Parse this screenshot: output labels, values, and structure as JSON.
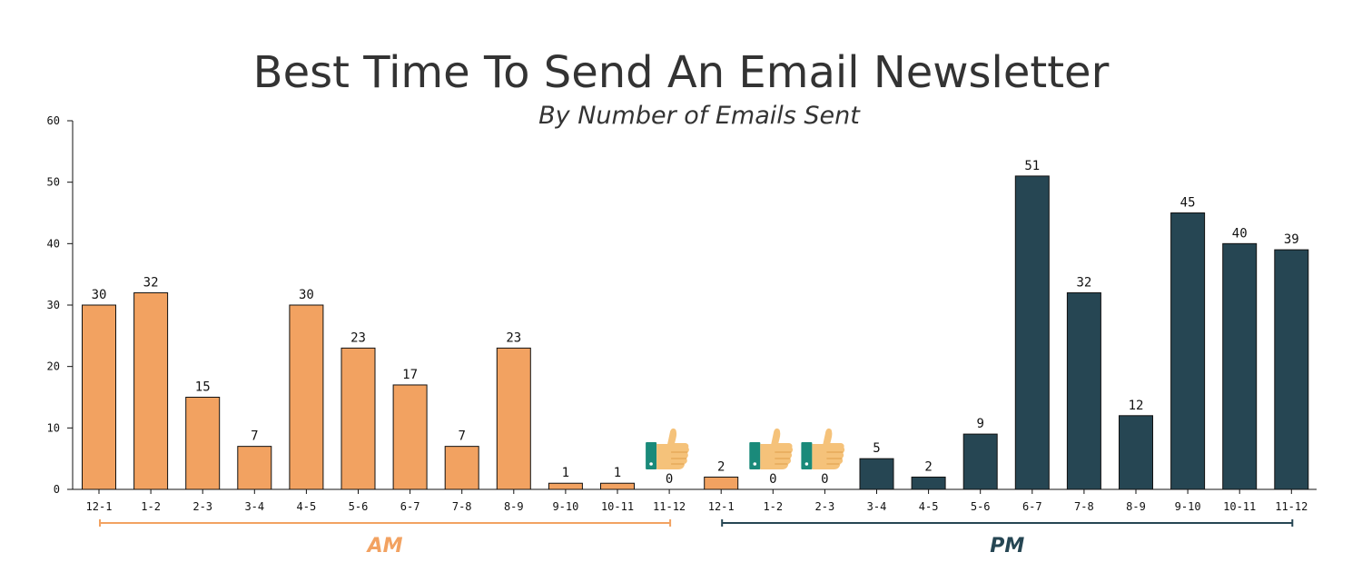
{
  "chart_data": {
    "type": "bar",
    "title": "Best Time To Send An Email Newsletter",
    "subtitle": "By Number of Emails Sent",
    "xlabel": "",
    "ylabel": "",
    "ylim": [
      0,
      60
    ],
    "yticks": [
      "0",
      "10",
      "20",
      "30",
      "40",
      "50",
      "60"
    ],
    "grid": false,
    "categories": [
      "12-1",
      "1-2",
      "2-3",
      "3-4",
      "4-5",
      "5-6",
      "6-7",
      "7-8",
      "8-9",
      "9-10",
      "10-11",
      "11-12",
      "12-1",
      "1-2",
      "2-3",
      "3-4",
      "4-5",
      "5-6",
      "6-7",
      "7-8",
      "8-9",
      "9-10",
      "10-11",
      "11-12"
    ],
    "values": [
      30,
      32,
      15,
      7,
      30,
      23,
      17,
      7,
      23,
      1,
      1,
      0,
      2,
      0,
      0,
      5,
      2,
      9,
      51,
      32,
      12,
      45,
      40,
      39
    ],
    "bar_colors": [
      "#f2a261",
      "#f2a261",
      "#f2a261",
      "#f2a261",
      "#f2a261",
      "#f2a261",
      "#f2a261",
      "#f2a261",
      "#f2a261",
      "#f2a261",
      "#f2a261",
      "#f2a261",
      "#f2a261",
      "#f2a261",
      "#f2a261",
      "#264653",
      "#264653",
      "#264653",
      "#264653",
      "#264653",
      "#264653",
      "#264653",
      "#264653",
      "#264653"
    ],
    "thumbs_up_on": [
      11,
      13,
      14
    ],
    "periods": [
      {
        "label": "AM",
        "from": 0,
        "to": 11,
        "color": "#f2a261"
      },
      {
        "label": "PM",
        "from": 12,
        "to": 23,
        "color": "#264653"
      }
    ],
    "annotation_icon": "thumbs-up-icon"
  }
}
